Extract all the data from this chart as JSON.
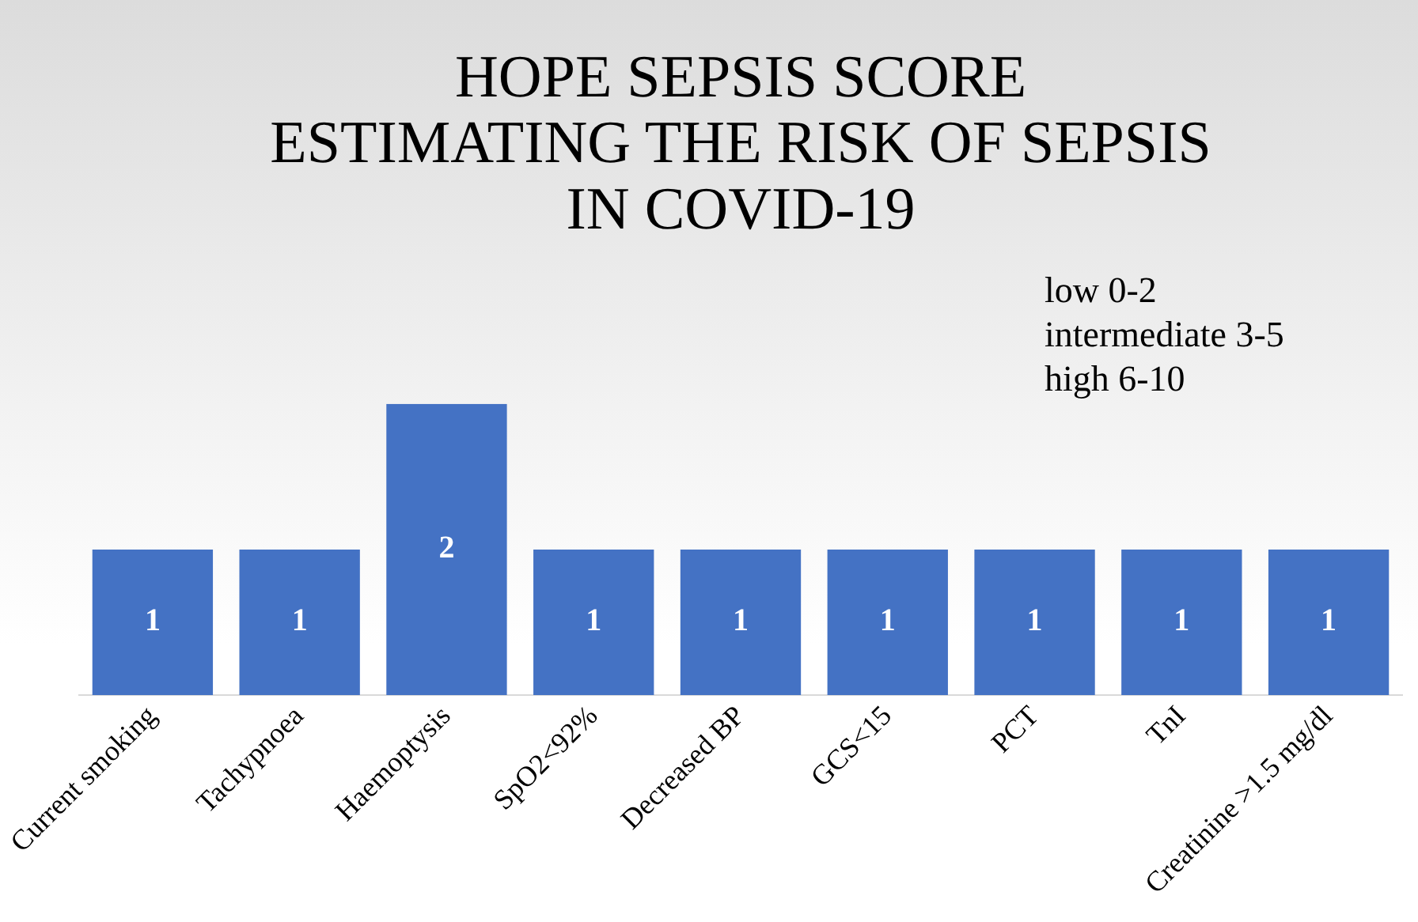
{
  "chart_data": {
    "type": "bar",
    "title": "HOPE SEPSIS SCORE\nESTIMATING THE RISK OF SEPSIS\nIN COVID-19",
    "categories": [
      "Current smoking",
      "Tachypnoea",
      "Haemoptysis",
      "SpO2<92%",
      "Decreased BP",
      "GCS<15",
      "PCT",
      "TnI",
      "Creatinine >1.5 mg/dl"
    ],
    "values": [
      1,
      1,
      2,
      1,
      1,
      1,
      1,
      1,
      1
    ],
    "color": "#4472c4",
    "data_labels": true,
    "grid": false,
    "legend": false,
    "annotations": [
      "low 0-2",
      "intermediate 3-5",
      "high 6-10"
    ]
  }
}
